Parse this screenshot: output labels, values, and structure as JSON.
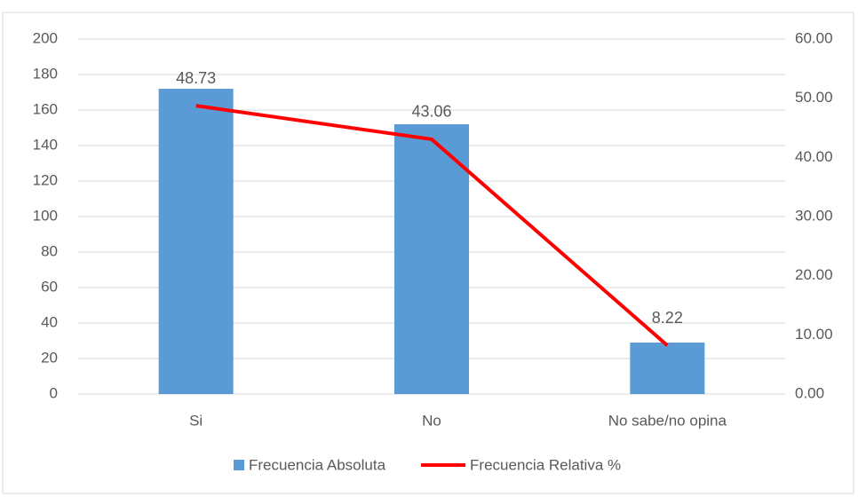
{
  "chart_data": {
    "type": "bar_line",
    "categories": [
      "Si",
      "No",
      "No sabe/no opina"
    ],
    "series": [
      {
        "name": "Frecuencia Absoluta",
        "type": "bar",
        "color": "#5b9bd5",
        "values": [
          172,
          152,
          29
        ]
      },
      {
        "name": "Frecuencia Relativa %",
        "type": "line",
        "axis": "y2",
        "color": "#ff0000",
        "values": [
          48.73,
          43.06,
          8.22
        ]
      }
    ],
    "ylim": [
      0,
      200
    ],
    "yticks": [
      0,
      20,
      40,
      60,
      80,
      100,
      120,
      140,
      160,
      180,
      200
    ],
    "y2lim": [
      0,
      60
    ],
    "y2ticks": [
      {
        "value": 0,
        "label": "0.00"
      },
      {
        "value": 10,
        "label": "10.00"
      },
      {
        "value": 20,
        "label": "20.00"
      },
      {
        "value": 30,
        "label": "30.00"
      },
      {
        "value": 40,
        "label": "40.00"
      },
      {
        "value": 50,
        "label": "50.00"
      },
      {
        "value": 60,
        "label": "60.00"
      }
    ],
    "grid": true,
    "legend": "bottom"
  }
}
